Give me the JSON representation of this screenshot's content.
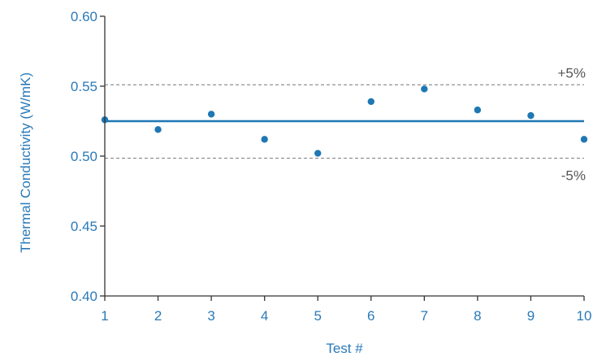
{
  "chart_data": {
    "type": "scatter",
    "title": "",
    "xlabel": "Test #",
    "ylabel": "Thermal Conductivity (W/mK)",
    "x": [
      1,
      2,
      3,
      4,
      5,
      6,
      7,
      8,
      9,
      10
    ],
    "y": [
      0.526,
      0.519,
      0.53,
      0.512,
      0.502,
      0.539,
      0.548,
      0.533,
      0.529,
      0.512
    ],
    "xlim": [
      1,
      10
    ],
    "ylim": [
      0.4,
      0.6
    ],
    "x_ticks": [
      "1",
      "2",
      "3",
      "4",
      "5",
      "6",
      "7",
      "8",
      "9",
      "10"
    ],
    "x_tick_values": [
      1,
      2,
      3,
      4,
      5,
      6,
      7,
      8,
      9,
      10
    ],
    "y_ticks": [
      "0.40",
      "0.45",
      "0.50",
      "0.55",
      "0.60"
    ],
    "y_tick_values": [
      0.4,
      0.45,
      0.5,
      0.55,
      0.6
    ],
    "mean_line": 0.525,
    "reference_lines": [
      {
        "label": "+5%",
        "value": 0.551
      },
      {
        "label": "-5%",
        "value": 0.4985
      }
    ],
    "grid": false,
    "legend": "none",
    "colors": {
      "marker": "#1f77b4",
      "mean_line": "#1f77b4",
      "reference": "#777777",
      "axis": "#333333",
      "tick_label": "#2a7ab8",
      "reference_label": "#555555"
    }
  }
}
